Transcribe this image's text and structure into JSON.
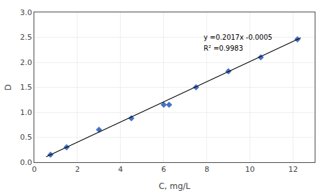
{
  "chart_data": {
    "type": "scatter",
    "x_label": "C, mg/L",
    "y_label": "D",
    "annotations": [
      "y =0.2017x -0.0005",
      "R² =0.9983"
    ],
    "series": [
      {
        "type": "scatter",
        "marker": "diamond",
        "color": "#4472C4",
        "x": [
          0.75,
          1.5,
          3.0,
          4.5,
          6.0,
          6.25,
          7.5,
          9.0,
          10.5,
          12.2
        ],
        "values": [
          0.15,
          0.3,
          0.65,
          0.88,
          1.15,
          1.15,
          1.5,
          1.82,
          2.1,
          2.46
        ]
      },
      {
        "type": "line",
        "line_style": "solid",
        "color": "#000000",
        "x": [
          0.55,
          12.35
        ],
        "values": [
          0.110435,
          2.490495
        ]
      }
    ],
    "xlim": [
      0,
      13
    ],
    "ylim": [
      0,
      3
    ],
    "xticks": [
      0,
      2,
      4,
      6,
      8,
      10,
      12
    ],
    "yticks": [
      {
        "value": 0,
        "label": "0.0"
      },
      0.5,
      {
        "value": 1.0,
        "label": "1.0"
      },
      1.5,
      {
        "value": 2.0,
        "label": "2.0"
      },
      2.5,
      {
        "value": 3.0,
        "label": "3.0"
      }
    ],
    "grid": true
  }
}
